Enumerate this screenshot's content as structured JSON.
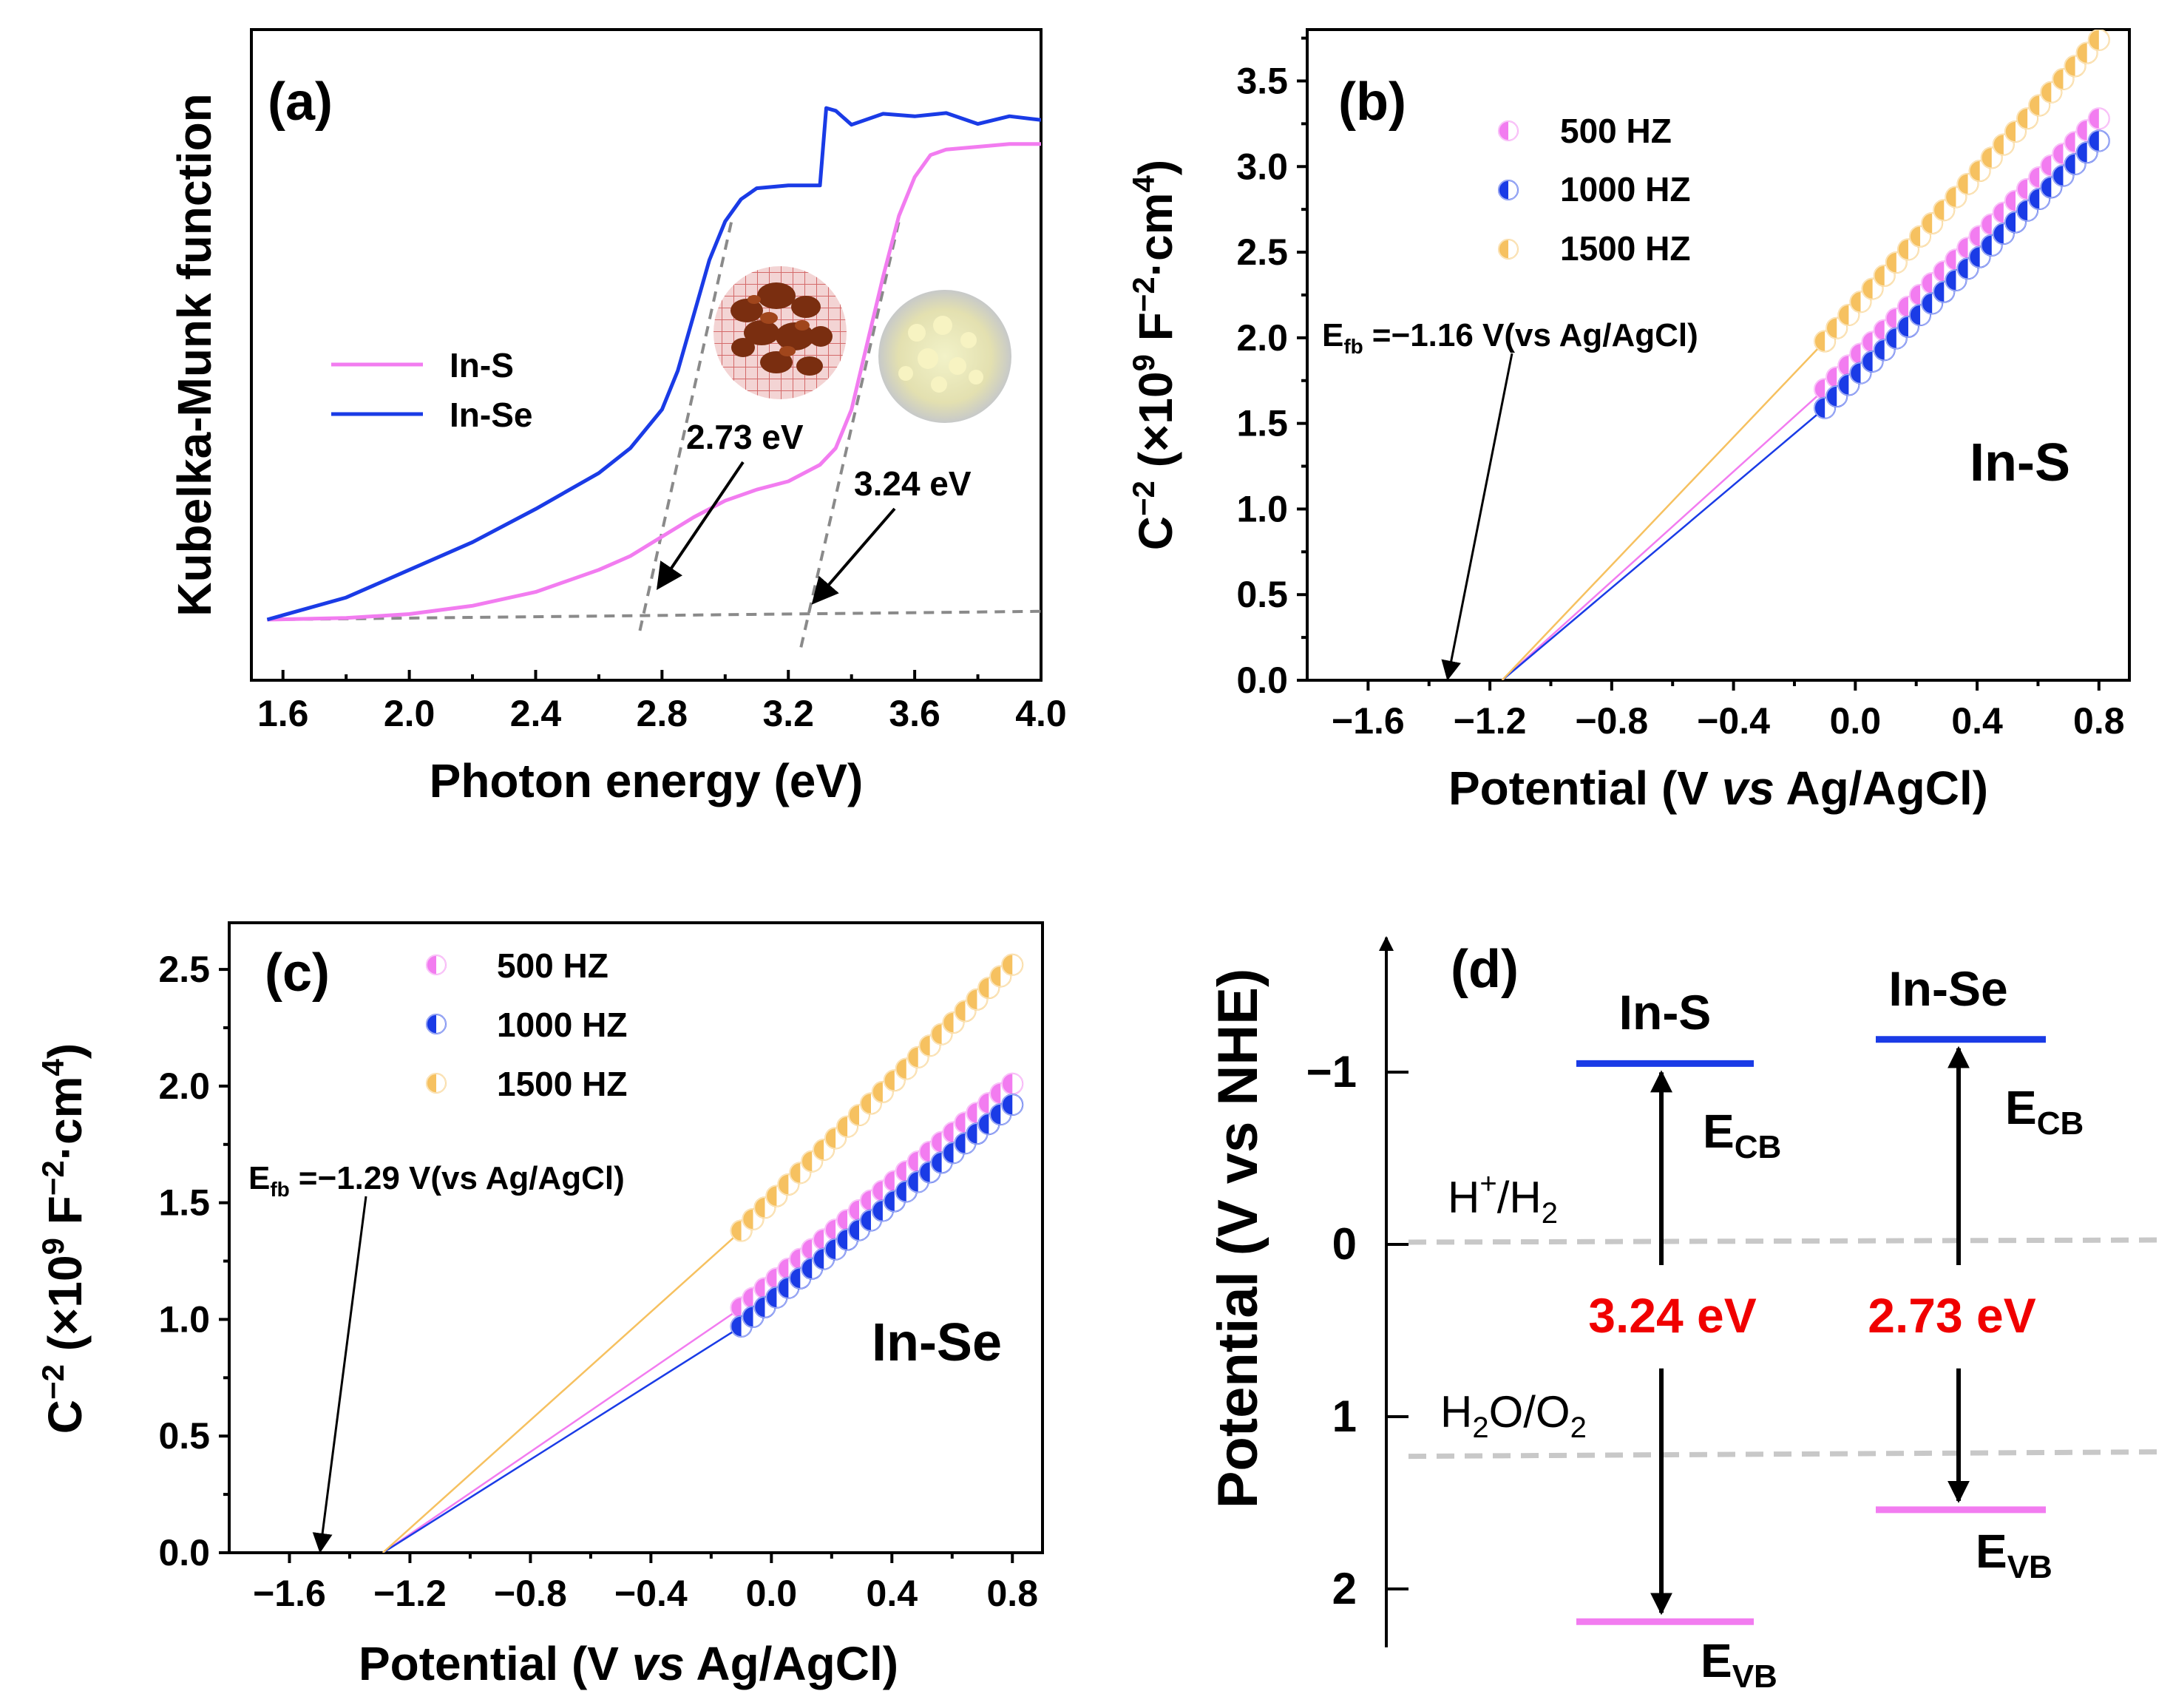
{
  "colors": {
    "in_s": "#f27cf0",
    "in_se": "#1a3be6",
    "hz1500": "#f6c160",
    "hz500": "#f27cf0",
    "hz1000": "#1a3be6",
    "red": "#f00000",
    "ref_line": "#c8c8c8",
    "dashed": "#8a8a8a"
  },
  "chart_data": [
    {
      "panel": "(a)",
      "type": "line",
      "xlabel": "Photon energy (eV)",
      "ylabel": "Kubelka-Munk function",
      "xlim": [
        1.5,
        4.0
      ],
      "ylim": [
        0,
        1
      ],
      "xticks": [
        "1.6",
        "2.0",
        "2.4",
        "2.8",
        "3.2",
        "3.6",
        "4.0"
      ],
      "legend": [
        "In-S",
        "In-Se"
      ],
      "series": [
        {
          "name": "In-S",
          "color_key": "in_s",
          "x": [
            1.55,
            1.8,
            2.0,
            2.2,
            2.4,
            2.6,
            2.7,
            2.8,
            2.9,
            3.0,
            3.1,
            3.2,
            3.3,
            3.35,
            3.4,
            3.45,
            3.5,
            3.55,
            3.6,
            3.65,
            3.7,
            3.8,
            3.9,
            4.0
          ],
          "y": [
            0.0,
            0.003,
            0.01,
            0.025,
            0.05,
            0.09,
            0.115,
            0.15,
            0.185,
            0.215,
            0.235,
            0.25,
            0.28,
            0.31,
            0.38,
            0.5,
            0.62,
            0.73,
            0.8,
            0.84,
            0.85,
            0.855,
            0.86,
            0.86
          ]
        },
        {
          "name": "In-Se",
          "color_key": "in_se",
          "x": [
            1.55,
            1.8,
            2.0,
            2.2,
            2.4,
            2.6,
            2.7,
            2.8,
            2.85,
            2.9,
            2.95,
            3.0,
            3.05,
            3.1,
            3.2,
            3.3,
            3.32,
            3.35,
            3.4,
            3.5,
            3.6,
            3.7,
            3.8,
            3.9,
            4.0
          ],
          "y": [
            0.0,
            0.04,
            0.09,
            0.14,
            0.2,
            0.265,
            0.31,
            0.38,
            0.45,
            0.55,
            0.65,
            0.72,
            0.76,
            0.78,
            0.785,
            0.785,
            0.925,
            0.92,
            0.9,
            0.91,
            0.9,
            0.91,
            0.9,
            0.92,
            0.91
          ]
        }
      ],
      "annotations": [
        "2.73 eV",
        "3.24 eV"
      ]
    },
    {
      "panel": "(b)",
      "type": "scatter",
      "xlabel_parts": [
        "Potential (V ",
        "vs",
        " Ag/AgCl)"
      ],
      "ylabel": "C⁻² (×10⁹ F⁻²·cm⁴)",
      "xlim": [
        -1.8,
        0.9
      ],
      "ylim": [
        0,
        3.8
      ],
      "xticks": [
        "−1.6",
        "−1.2",
        "−0.8",
        "−0.4",
        "0.0",
        "0.4",
        "0.8"
      ],
      "yticks": [
        "0.0",
        "0.5",
        "1.0",
        "1.5",
        "2.0",
        "2.5",
        "3.0",
        "3.5"
      ],
      "sample": "In-S",
      "efb_value": -1.16,
      "annotation": "=−1.16 V(vs Ag/AgCl)",
      "series": [
        {
          "name": "500 HZ",
          "color_key": "hz500",
          "x_start": -0.1,
          "x_end": 0.8,
          "y_start": 1.7,
          "y_end": 3.28
        },
        {
          "name": "1000 HZ",
          "color_key": "hz1000",
          "x_start": -0.1,
          "x_end": 0.8,
          "y_start": 1.59,
          "y_end": 3.15
        },
        {
          "name": "1500 HZ",
          "color_key": "hz1500",
          "x_start": -0.1,
          "x_end": 0.8,
          "y_start": 1.98,
          "y_end": 3.74
        }
      ]
    },
    {
      "panel": "(c)",
      "type": "scatter",
      "xlabel_parts": [
        "Potential (V ",
        "vs",
        " Ag/AgCl)"
      ],
      "ylabel": "C⁻² (×10⁹ F⁻²·cm⁴)",
      "xlim": [
        -1.8,
        0.9
      ],
      "ylim": [
        0,
        2.7
      ],
      "xticks": [
        "−1.6",
        "−1.2",
        "−0.8",
        "−0.4",
        "0.0",
        "0.4",
        "0.8"
      ],
      "yticks": [
        "0.0",
        "0.5",
        "1.0",
        "1.5",
        "2.0",
        "2.5"
      ],
      "sample": "In-Se",
      "efb_value": -1.29,
      "annotation": "=−1.29 V(vs Ag/AgCl)",
      "series": [
        {
          "name": "500 HZ",
          "color_key": "hz500",
          "x_start": -0.1,
          "x_end": 0.8,
          "y_start": 1.05,
          "y_end": 2.01
        },
        {
          "name": "1000 HZ",
          "color_key": "hz1000",
          "x_start": -0.1,
          "x_end": 0.8,
          "y_start": 0.97,
          "y_end": 1.92
        },
        {
          "name": "1500 HZ",
          "color_key": "hz1500",
          "x_start": -0.1,
          "x_end": 0.8,
          "y_start": 1.38,
          "y_end": 2.52
        }
      ]
    },
    {
      "panel": "(d)",
      "type": "band-diagram",
      "ylabel": "Potential (V vs NHE)",
      "ylim": [
        -1.7,
        2.3
      ],
      "yticks": [
        "−1",
        "0",
        "1",
        "2"
      ],
      "ref_levels": [
        {
          "label": "H⁺/H₂",
          "value": 0.0
        },
        {
          "label": "H₂O/O₂",
          "value": 1.23
        }
      ],
      "materials": [
        {
          "name": "In-S",
          "ecb": -1.05,
          "evb": 2.19,
          "gap": "3.24 eV"
        },
        {
          "name": "In-Se",
          "ecb": -1.19,
          "evb": 1.54,
          "gap": "2.73 eV"
        }
      ]
    }
  ],
  "text": {
    "a_label": "(a)",
    "b_label": "(b)",
    "c_label": "(c)",
    "d_label": "(d)",
    "legend_in_s": "In-S",
    "legend_in_se": "In-Se",
    "gap_se": "2.73 eV",
    "gap_s": "3.24 eV",
    "hz500": "500 HZ",
    "hz1000": "1000 HZ",
    "hz1500": "1500 HZ",
    "efb_E": "E",
    "efb_sub": "fb",
    "efb_b": "=−1.16 V(vs Ag/AgCl)",
    "efb_c": "=−1.29 V(vs Ag/AgCl)",
    "sample_b": "In-S",
    "sample_c": "In-Se",
    "a_xlabel": "Photon energy (eV)",
    "a_ylabel": "Kubelka-Munk function",
    "bc_xlabel_1": "Potential (V ",
    "bc_xlabel_vs": "vs",
    "bc_xlabel_2": " Ag/AgCl)",
    "ylab_C": "C",
    "ylab_sup": "−2",
    "ylab_mid": " (×10",
    "ylab_sup9": "9",
    "ylab_F": " F",
    "ylab_supF": "−2",
    "ylab_cm": "·cm",
    "ylab_sup4": "4",
    "ylab_end": ")",
    "d_ylabel": "Potential (V vs NHE)",
    "d_in_s": "In-S",
    "d_in_se": "In-Se",
    "E": "E",
    "cb": "CB",
    "vb": "VB",
    "h_main": "H",
    "h_sup": "+",
    "h_rest": "/H",
    "h_sub": "2",
    "o_h": "H",
    "o_sub2": "2",
    "o_o": "O/O",
    "o_sub2b": "2",
    "d_gap_s": "3.24 eV",
    "d_gap_se": "2.73 eV"
  }
}
